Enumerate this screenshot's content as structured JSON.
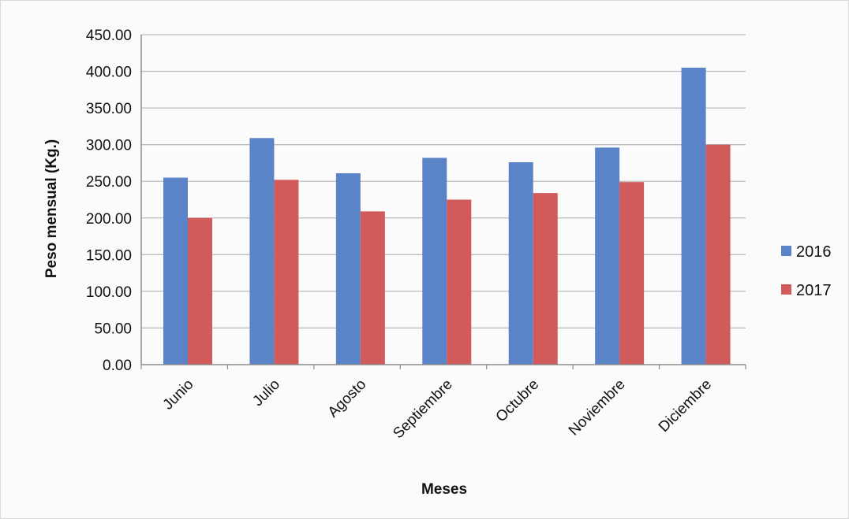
{
  "chart_data": {
    "type": "bar",
    "title": "",
    "xlabel": "Meses",
    "ylabel": "Peso mensual  (Kg.)",
    "categories": [
      "Junio",
      "Julio",
      "Agosto",
      "Septiembre",
      "Octubre",
      "Noviembre",
      "Diciembre"
    ],
    "series": [
      {
        "name": "2016",
        "color": "#5b84c8",
        "values": [
          255,
          309,
          261,
          282,
          276,
          296,
          405
        ]
      },
      {
        "name": "2017",
        "color": "#d15a5a",
        "values": [
          200,
          252,
          209,
          225,
          234,
          249,
          300
        ]
      }
    ],
    "ylim": [
      0,
      450
    ],
    "yticks": [
      "0.00",
      "50.00",
      "100.00",
      "150.00",
      "200.00",
      "250.00",
      "300.00",
      "350.00",
      "400.00",
      "450.00"
    ],
    "grid": true,
    "legend_position": "right"
  }
}
